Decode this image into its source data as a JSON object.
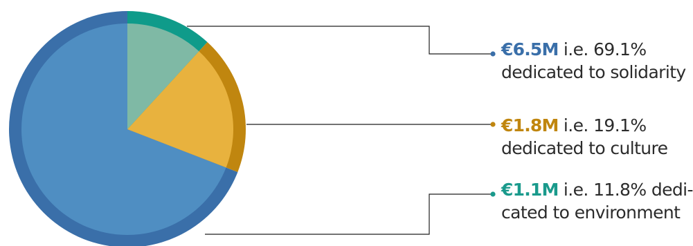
{
  "chart_data": {
    "type": "pie",
    "slices": [
      {
        "amount": "€6.5M",
        "line1_rest": " i.e. 69.1%",
        "line2": "dedicated to solidarity",
        "value": 69.1,
        "inner_color": "#4f8ec2",
        "outer_color": "#3a6fa9",
        "label_color": "#3a6fa9"
      },
      {
        "amount": "€1.8M",
        "line1_rest": " i.e. 19.1%",
        "line2": "dedicated to culture",
        "value": 19.1,
        "inner_color": "#e8b23e",
        "outer_color": "#c0860f",
        "label_color": "#c0860f"
      },
      {
        "amount": "€1.1M",
        "line1_rest": " i.e. 11.8% dedi-",
        "line2": "cated to environment",
        "value": 11.8,
        "inner_color": "#7fb9a5",
        "outer_color": "#0f9b8a",
        "label_color": "#1a9a8c"
      }
    ]
  }
}
